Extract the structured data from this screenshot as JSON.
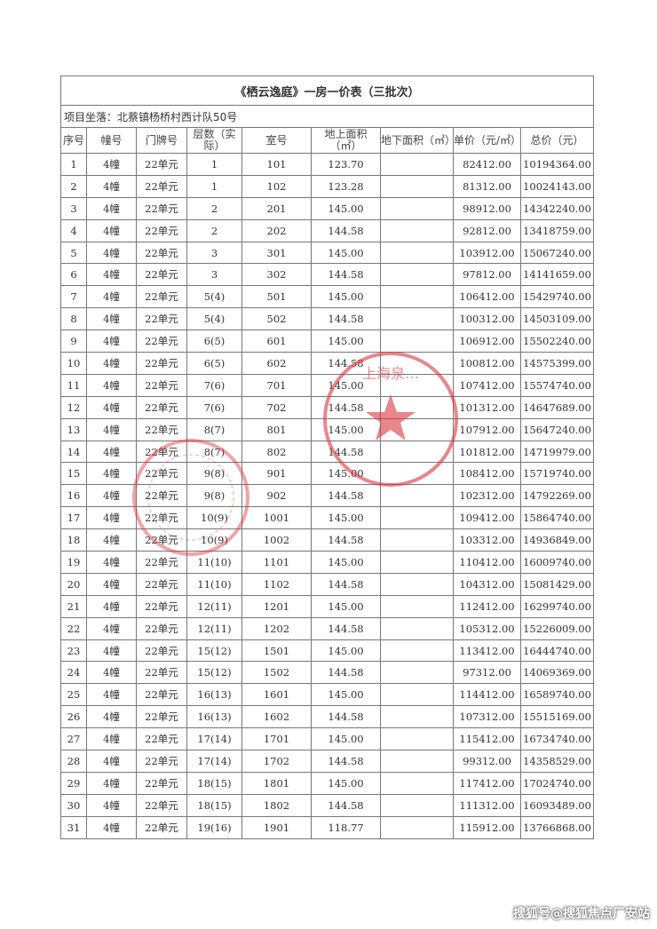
{
  "document": {
    "title": "《栖云逸庭》一房一价表（三批次）",
    "address": "项目坐落：北蔡镇杨桥村西计队50号",
    "columns": [
      "序号",
      "幢号",
      "门牌号",
      "层数（实际）",
      "室号",
      "地上面积（㎡）",
      "地下面积（㎡）",
      "单价（元/㎡）",
      "总价（元）"
    ],
    "rows": [
      [
        "1",
        "4幢",
        "22单元",
        "1",
        "101",
        "123.70",
        "",
        "82412.00",
        "10194364.00"
      ],
      [
        "2",
        "4幢",
        "22单元",
        "1",
        "102",
        "123.28",
        "",
        "81312.00",
        "10024143.00"
      ],
      [
        "3",
        "4幢",
        "22单元",
        "2",
        "201",
        "145.00",
        "",
        "98912.00",
        "14342240.00"
      ],
      [
        "4",
        "4幢",
        "22单元",
        "2",
        "202",
        "144.58",
        "",
        "92812.00",
        "13418759.00"
      ],
      [
        "5",
        "4幢",
        "22单元",
        "3",
        "301",
        "145.00",
        "",
        "103912.00",
        "15067240.00"
      ],
      [
        "6",
        "4幢",
        "22单元",
        "3",
        "302",
        "144.58",
        "",
        "97812.00",
        "14141659.00"
      ],
      [
        "7",
        "4幢",
        "22单元",
        "5(4)",
        "501",
        "145.00",
        "",
        "106412.00",
        "15429740.00"
      ],
      [
        "8",
        "4幢",
        "22单元",
        "5(4)",
        "502",
        "144.58",
        "",
        "100312.00",
        "14503109.00"
      ],
      [
        "9",
        "4幢",
        "22单元",
        "6(5)",
        "601",
        "145.00",
        "",
        "106912.00",
        "15502240.00"
      ],
      [
        "10",
        "4幢",
        "22单元",
        "6(5)",
        "602",
        "144.58",
        "",
        "100812.00",
        "14575399.00"
      ],
      [
        "11",
        "4幢",
        "22单元",
        "7(6)",
        "701",
        "145.00",
        "",
        "107412.00",
        "15574740.00"
      ],
      [
        "12",
        "4幢",
        "22单元",
        "7(6)",
        "702",
        "144.58",
        "",
        "101312.00",
        "14647689.00"
      ],
      [
        "13",
        "4幢",
        "22单元",
        "8(7)",
        "801",
        "145.00",
        "",
        "107912.00",
        "15647240.00"
      ],
      [
        "14",
        "4幢",
        "22单元",
        "8(7)",
        "802",
        "144.58",
        "",
        "101812.00",
        "14719979.00"
      ],
      [
        "15",
        "4幢",
        "22单元",
        "9(8)",
        "901",
        "145.00",
        "",
        "108412.00",
        "15719740.00"
      ],
      [
        "16",
        "4幢",
        "22单元",
        "9(8)",
        "902",
        "144.58",
        "",
        "102312.00",
        "14792269.00"
      ],
      [
        "17",
        "4幢",
        "22单元",
        "10(9)",
        "1001",
        "145.00",
        "",
        "109412.00",
        "15864740.00"
      ],
      [
        "18",
        "4幢",
        "22单元",
        "10(9)",
        "1002",
        "144.58",
        "",
        "103312.00",
        "14936849.00"
      ],
      [
        "19",
        "4幢",
        "22单元",
        "11(10)",
        "1101",
        "145.00",
        "",
        "110412.00",
        "16009740.00"
      ],
      [
        "20",
        "4幢",
        "22单元",
        "11(10)",
        "1102",
        "144.58",
        "",
        "104312.00",
        "15081429.00"
      ],
      [
        "21",
        "4幢",
        "22单元",
        "12(11)",
        "1201",
        "145.00",
        "",
        "112412.00",
        "16299740.00"
      ],
      [
        "22",
        "4幢",
        "22单元",
        "12(11)",
        "1202",
        "144.58",
        "",
        "105312.00",
        "15226009.00"
      ],
      [
        "23",
        "4幢",
        "22单元",
        "15(12)",
        "1501",
        "145.00",
        "",
        "113412.00",
        "16444740.00"
      ],
      [
        "24",
        "4幢",
        "22单元",
        "15(12)",
        "1502",
        "144.58",
        "",
        "97312.00",
        "14069369.00"
      ],
      [
        "25",
        "4幢",
        "22单元",
        "16(13)",
        "1601",
        "145.00",
        "",
        "114412.00",
        "16589740.00"
      ],
      [
        "26",
        "4幢",
        "22单元",
        "16(13)",
        "1602",
        "144.58",
        "",
        "107312.00",
        "15515169.00"
      ],
      [
        "27",
        "4幢",
        "22单元",
        "17(14)",
        "1701",
        "145.00",
        "",
        "115412.00",
        "16734740.00"
      ],
      [
        "28",
        "4幢",
        "22单元",
        "17(14)",
        "1702",
        "144.58",
        "",
        "99312.00",
        "14358529.00"
      ],
      [
        "29",
        "4幢",
        "22单元",
        "18(15)",
        "1801",
        "145.00",
        "",
        "117412.00",
        "17024740.00"
      ],
      [
        "30",
        "4幢",
        "22单元",
        "18(15)",
        "1802",
        "144.58",
        "",
        "111312.00",
        "16093489.00"
      ],
      [
        "31",
        "4幢",
        "22单元",
        "19(16)",
        "1901",
        "118.77",
        "",
        "115912.00",
        "13766868.00"
      ]
    ]
  },
  "stamp": {
    "color": "#d9363e",
    "text": "上海泉…"
  },
  "watermark": "搜狐号@搜狐焦点厂安站"
}
